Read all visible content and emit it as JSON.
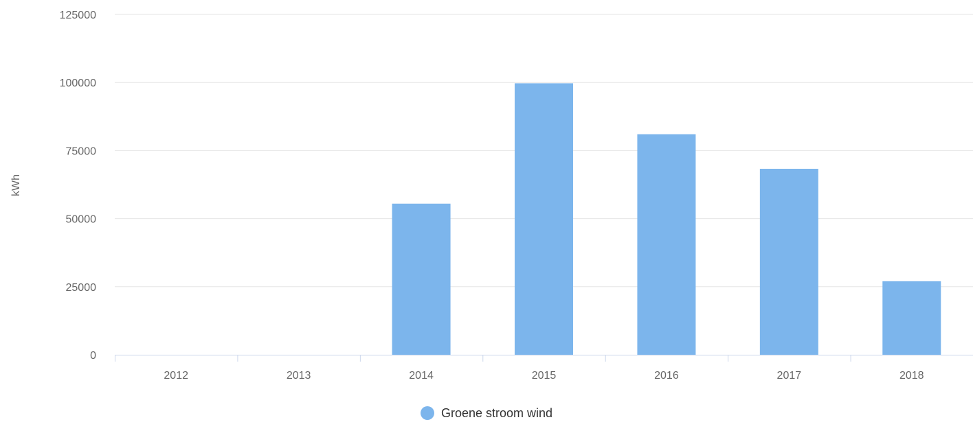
{
  "chart_data": {
    "type": "bar",
    "categories": [
      "2012",
      "2013",
      "2014",
      "2015",
      "2016",
      "2017",
      "2018"
    ],
    "series": [
      {
        "name": "Groene stroom wind",
        "values": [
          0,
          0,
          55500,
          99700,
          81000,
          68300,
          27000
        ],
        "color": "#7cb5ec"
      }
    ],
    "ylabel": "kWh",
    "ylim": [
      0,
      125000
    ],
    "yticks": [
      "0",
      "25000",
      "50000",
      "75000",
      "100000",
      "125000"
    ],
    "grid": true,
    "legend_position": "bottom-center"
  },
  "colors": {
    "grid": "#e6e6e6",
    "axis": "#ccd6eb",
    "text": "#666666",
    "legend_text": "#333333"
  }
}
